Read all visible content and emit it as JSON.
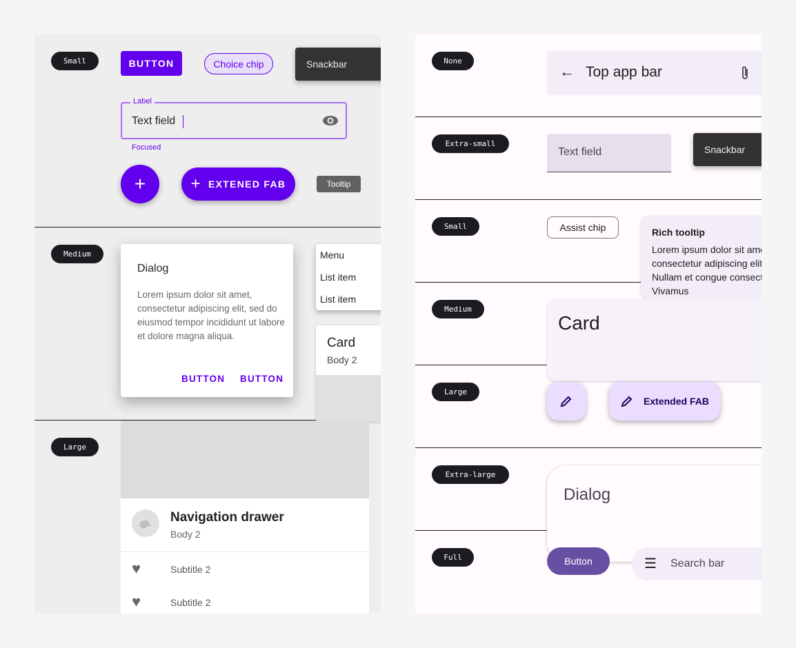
{
  "colors": {
    "primary_m2": "#6200ee",
    "primary_m3": "#6750a4",
    "surface_m3": "#fffbfe"
  },
  "left": {
    "sections": [
      "Small",
      "Medium",
      "Large"
    ],
    "button": "BUTTON",
    "choice_chip": "Choice chip",
    "snackbar": "Snackbar",
    "text_field": {
      "label": "Label",
      "value": "Text field",
      "helper": "Focused",
      "icon": "eye-icon"
    },
    "fab_icon": "plus-icon",
    "extended_fab": "EXTENED FAB",
    "tooltip": "Tooltip",
    "dialog": {
      "title": "Dialog",
      "body": "Lorem ipsum dolor sit amet, consectetur adipiscing elit, sed do eiusmod tempor incididunt ut labore et dolore magna aliqua.",
      "buttons": [
        "BUTTON",
        "BUTTON"
      ]
    },
    "menu": [
      "Menu",
      "List item",
      "List item"
    ],
    "card": {
      "title": "Card",
      "body": "Body 2"
    },
    "nav_drawer": {
      "title": "Navigation drawer",
      "body": "Body 2",
      "items": [
        "Subtitle 2",
        "Subtitle 2"
      ]
    }
  },
  "right": {
    "sections": [
      "None",
      "Extra-small",
      "Small",
      "Medium",
      "Large",
      "Extra-large",
      "Full"
    ],
    "top_app_bar": "Top app bar",
    "text_field": "Text field",
    "snackbar": "Snackbar",
    "assist_chip": "Assist chip",
    "rich_tooltip": {
      "title": "Rich tooltip",
      "body": "Lorem ipsum dolor sit amet, consectetur adipiscing elit. Nullam et congue consectetur. Vivamus"
    },
    "card": "Card",
    "extended_fab": "Extended FAB",
    "dialog": "Dialog",
    "button": "Button",
    "search_bar": "Search bar"
  }
}
